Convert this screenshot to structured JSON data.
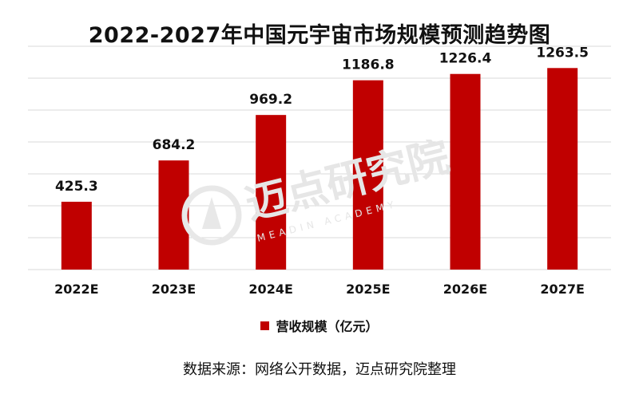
{
  "chart_data": {
    "type": "bar",
    "title": "2022-2027年中国元宇宙市场规模预测趋势图",
    "categories": [
      "2022E",
      "2023E",
      "2024E",
      "2025E",
      "2026E",
      "2027E"
    ],
    "series": [
      {
        "name": "营收规模（亿元）",
        "values": [
          425.3,
          684.2,
          969.2,
          1186.8,
          1226.4,
          1263.5
        ]
      }
    ],
    "value_labels": [
      "425.3",
      "684.2",
      "969.2",
      "1186.8",
      "1226.4",
      "1263.5"
    ],
    "ylim": [
      0,
      1400
    ],
    "grid": true,
    "legend_position": "bottom",
    "bar_color": "#C00000",
    "grid_color": "#D9D9D9"
  },
  "source": "数据来源：网络公开数据，迈点研究院整理",
  "watermark": {
    "text": "迈点研究院",
    "subtext": "MEADIN ACADEMY"
  }
}
